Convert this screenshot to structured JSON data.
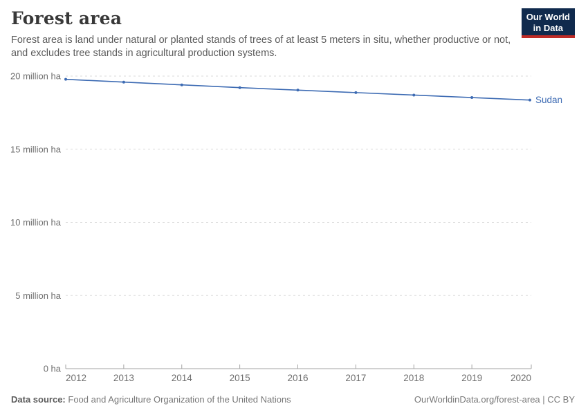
{
  "header": {
    "title": "Forest area",
    "subtitle": "Forest area is land under natural or planted stands of trees of at least 5 meters in situ, whether productive or not, and excludes tree stands in agricultural production systems.",
    "logo": {
      "line1": "Our World",
      "line2": "in Data"
    }
  },
  "footer": {
    "source_label": "Data source:",
    "source_value": "Food and Agriculture Organization of the United Nations",
    "attribution": "OurWorldinData.org/forest-area | CC BY"
  },
  "chart_data": {
    "type": "line",
    "title": "Forest area",
    "x": [
      2012,
      2013,
      2014,
      2015,
      2016,
      2017,
      2018,
      2019,
      2020
    ],
    "series": [
      {
        "name": "Sudan",
        "color": "#3d6bb3",
        "values_ha": [
          19778460,
          19588900,
          19399330,
          19209760,
          19040200,
          18870640,
          18701070,
          18531510,
          18361940
        ]
      }
    ],
    "xlabel": "",
    "ylabel": "",
    "ylim": [
      0,
      20000000
    ],
    "y_ticks": [
      {
        "value": 0,
        "label": "0 ha"
      },
      {
        "value": 5000000,
        "label": "5 million ha"
      },
      {
        "value": 10000000,
        "label": "10 million ha"
      },
      {
        "value": 15000000,
        "label": "15 million ha"
      },
      {
        "value": 20000000,
        "label": "20 million ha"
      }
    ],
    "grid": "horizontal-dashed",
    "legend": "end-of-line-label",
    "marker": "circle"
  },
  "colors": {
    "line": "#3d6bb3",
    "gridline": "#dadada",
    "axis": "#a3a3a3",
    "tick_label": "#6e6e6e",
    "logo_bg": "#102a4d",
    "logo_accent": "#bf2b26"
  }
}
